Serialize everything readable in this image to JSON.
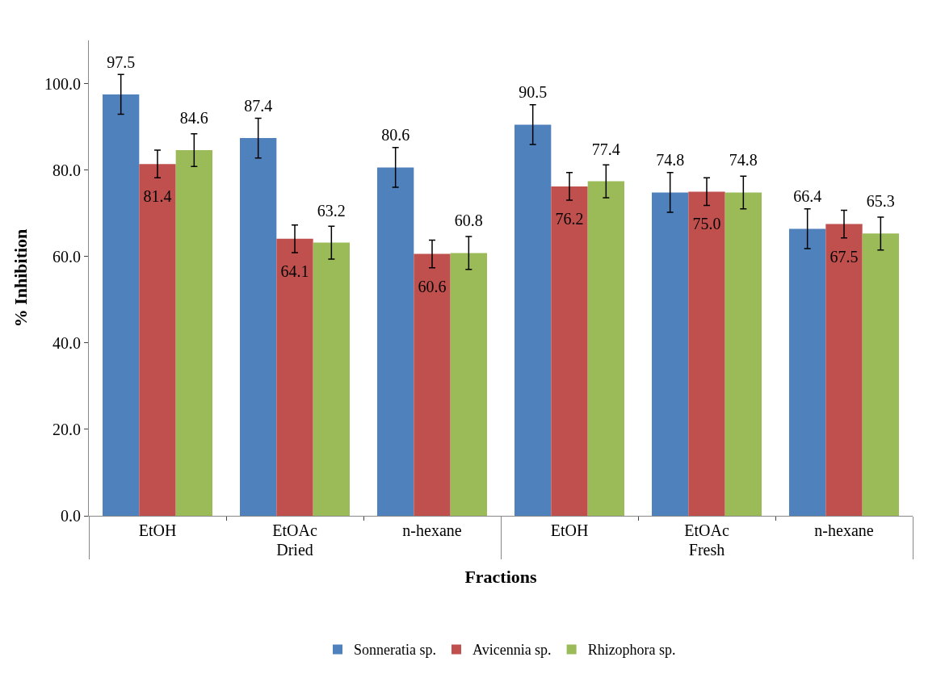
{
  "chart_data": {
    "type": "bar",
    "xlabel": "Fractions",
    "ylabel": "% Inhibition",
    "categories": [
      "EtOH",
      "EtOAc",
      "n-hexane",
      "EtOH",
      "EtOAc",
      "n-hexane"
    ],
    "annotations": [
      "Dried",
      "Fresh"
    ],
    "series": [
      {
        "name": "Sonneratia sp.",
        "color": "#4f81bd",
        "values": [
          97.5,
          87.4,
          80.6,
          90.5,
          74.8,
          66.4
        ],
        "errors": [
          4.6,
          4.6,
          4.6,
          4.6,
          4.6,
          4.6
        ],
        "value_labels": [
          "97.5",
          "87.4",
          "80.6",
          "90.5",
          "74.8",
          "66.4"
        ]
      },
      {
        "name": "Avicennia sp.",
        "color": "#c0504d",
        "values": [
          81.4,
          64.1,
          60.6,
          76.2,
          75.0,
          67.5
        ],
        "errors": [
          3.2,
          3.2,
          3.2,
          3.2,
          3.2,
          3.2
        ],
        "value_labels": [
          "81.4",
          "64.1",
          "60.6",
          "76.2",
          "75.0",
          "67.5"
        ]
      },
      {
        "name": "Rhizophora sp.",
        "color": "#9bbb59",
        "values": [
          84.6,
          63.2,
          60.8,
          77.4,
          74.8,
          65.3
        ],
        "errors": [
          3.8,
          3.8,
          3.8,
          3.8,
          3.8,
          3.8
        ],
        "value_labels": [
          "84.6",
          "63.2",
          "60.8",
          "77.4",
          "74.8",
          "65.3"
        ]
      }
    ],
    "ylim": [
      0,
      110
    ],
    "yticks": [
      {
        "value": 0,
        "label": "0.0"
      },
      {
        "value": 20,
        "label": "20.0"
      },
      {
        "value": 40,
        "label": "40.0"
      },
      {
        "value": 60,
        "label": "60.0"
      },
      {
        "value": 80,
        "label": "80.0"
      },
      {
        "value": 100,
        "label": "100.0"
      }
    ],
    "legend": "bottom"
  }
}
